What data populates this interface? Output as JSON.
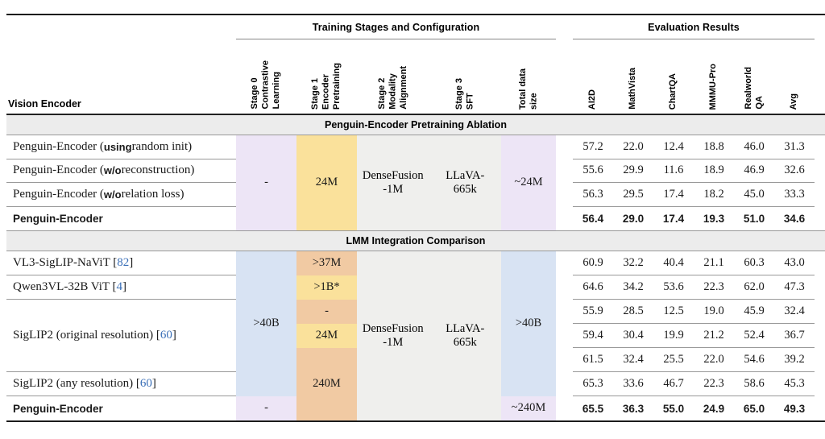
{
  "header": {
    "vision_encoder": "Vision Encoder",
    "group_training": "Training Stages and Configuration",
    "group_eval": "Evaluation Results",
    "stage_cols": [
      "Stage 0\nContrastive\nLearning",
      "Stage 1\nEncoder\nPretraining",
      "Stage 2\nModality\nAlignment",
      "Stage 3\nSFT",
      "Total data\nsize"
    ],
    "eval_cols": [
      "AI2D",
      "MathVista",
      "ChartQA",
      "MMMU-Pro",
      "Realworld\nQA",
      "Avg"
    ]
  },
  "section1": {
    "title": "Penguin-Encoder Pretraining Ablation",
    "stage0": "-",
    "stage1": "24M",
    "stage2": "DenseFusion\n-1M",
    "stage3": "LLaVA-\n665k",
    "total": "~24M",
    "rows": [
      {
        "label_pre": "Penguin-Encoder (",
        "label_bold": "using",
        "label_post": " random init)",
        "values": [
          "57.2",
          "22.0",
          "12.4",
          "18.8",
          "46.0",
          "31.3"
        ]
      },
      {
        "label_pre": "Penguin-Encoder (",
        "label_bold": "w/o",
        "label_post": " reconstruction)",
        "values": [
          "55.6",
          "29.9",
          "11.6",
          "18.9",
          "46.9",
          "32.6"
        ]
      },
      {
        "label_pre": "Penguin-Encoder (",
        "label_bold": "w/o",
        "label_post": " relation loss)",
        "values": [
          "56.3",
          "29.5",
          "17.4",
          "18.2",
          "45.0",
          "33.3"
        ]
      },
      {
        "label_bold_full": "Penguin-Encoder",
        "values": [
          "56.4",
          "29.0",
          "17.4",
          "19.3",
          "51.0",
          "34.6"
        ]
      }
    ]
  },
  "section2": {
    "title": "LMM Integration Comparison",
    "stage0_main": ">40B",
    "stage0_last": "-",
    "stage1_r1": ">37M",
    "stage1_r2": ">1B*",
    "stage1_r3": "-",
    "stage1_r4": "24M",
    "stage1_r57": "240M",
    "stage2": "DenseFusion\n-1M",
    "stage3": "LLaVA-\n665k",
    "total_main": ">40B",
    "total_last": "~240M",
    "labels": {
      "r1_pre": "VL3-SigLIP-NaViT [",
      "r1_cite": "82",
      "r1_post": "]",
      "r2_pre": "Qwen3VL-32B ViT [",
      "r2_cite": "4",
      "r2_post": "]",
      "r35_pre": "SigLIP2 (original resolution) [",
      "r35_cite": "60",
      "r35_post": "]",
      "r6_pre": "SigLIP2 (any resolution) [",
      "r6_cite": "60",
      "r6_post": "]",
      "r7": "Penguin-Encoder"
    },
    "values": [
      [
        "60.9",
        "32.2",
        "40.4",
        "21.1",
        "60.3",
        "43.0"
      ],
      [
        "64.6",
        "34.2",
        "53.6",
        "22.3",
        "62.0",
        "47.3"
      ],
      [
        "55.9",
        "28.5",
        "12.5",
        "19.0",
        "45.9",
        "32.4"
      ],
      [
        "59.4",
        "30.4",
        "19.9",
        "21.2",
        "52.4",
        "36.7"
      ],
      [
        "61.5",
        "32.4",
        "25.5",
        "22.0",
        "54.6",
        "39.2"
      ],
      [
        "65.3",
        "33.6",
        "46.7",
        "22.3",
        "58.6",
        "45.3"
      ],
      [
        "65.5",
        "36.3",
        "55.0",
        "24.9",
        "65.0",
        "49.3"
      ]
    ]
  },
  "colors": {
    "purple": "#ede5f6",
    "yellow": "#fae19b",
    "orange": "#f1caa3",
    "blue": "#d8e3f3",
    "gray_block": "#efefed",
    "section_band": "#ececec",
    "citation_blue": "#3a6fb7"
  }
}
